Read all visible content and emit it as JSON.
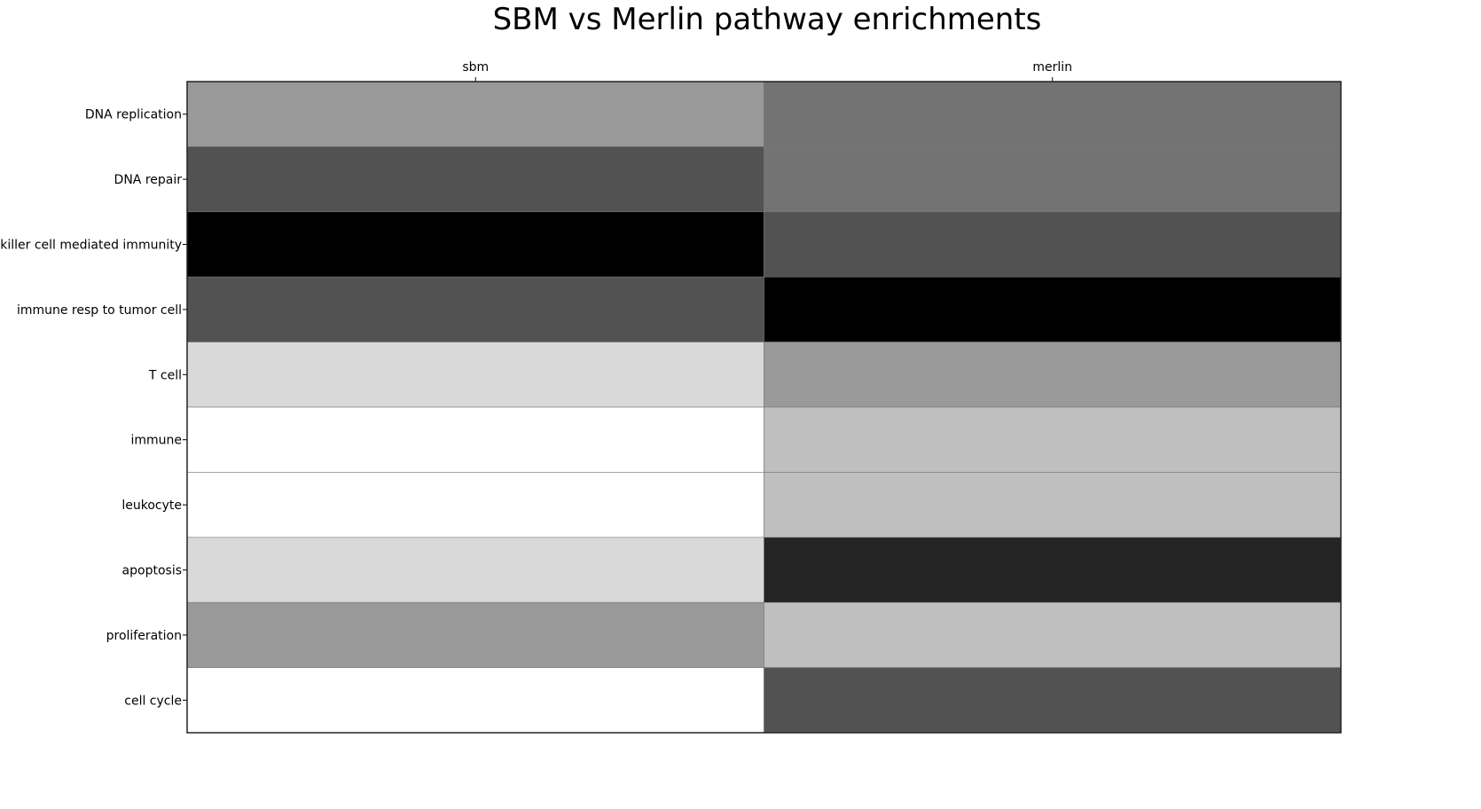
{
  "chart_data": {
    "type": "heatmap",
    "title": "SBM vs Merlin pathway enrichments",
    "columns": [
      "sbm",
      "merlin"
    ],
    "rows": [
      "DNA replication",
      "DNA repair",
      "killer cell mediated immunity",
      "immune resp to tumor cell",
      "T cell",
      "immune",
      "leukocyte",
      "apoptosis",
      "proliferation",
      "cell cycle"
    ],
    "values": [
      [
        0.4,
        0.55
      ],
      [
        0.68,
        0.55
      ],
      [
        1.0,
        0.68
      ],
      [
        0.68,
        1.0
      ],
      [
        0.15,
        0.4
      ],
      [
        0.0,
        0.25
      ],
      [
        0.0,
        0.25
      ],
      [
        0.15,
        0.86
      ],
      [
        0.4,
        0.25
      ],
      [
        0.0,
        0.68
      ]
    ],
    "colormap": "gray_r",
    "colorbar": false
  }
}
